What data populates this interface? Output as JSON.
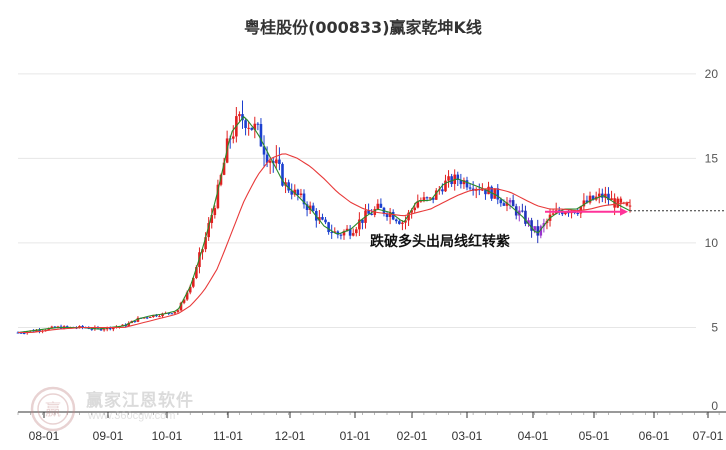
{
  "chart_data": {
    "type": "candlestick",
    "title": "粤桂股份(000833)赢家乾坤K线",
    "xlabel": "",
    "ylabel": "",
    "ylim": [
      0,
      22
    ],
    "x_tick_labels": [
      "08-01",
      "09-01",
      "10-01",
      "11-01",
      "12-01",
      "01-01",
      "02-01",
      "03-01",
      "04-01",
      "05-01",
      "06-01",
      "07-01"
    ],
    "y_tick_labels": [
      "0",
      "5",
      "10",
      "15",
      "20"
    ],
    "y_ticks": [
      0,
      5,
      10,
      15,
      20
    ],
    "grid": true,
    "annotation": "跌破多头出局线红转紫",
    "last_close": 11.9,
    "series": [
      {
        "values": [
          4.7,
          4.8,
          4.9,
          5.0,
          5.0,
          5.0,
          4.9,
          5.0,
          5.1,
          5.5,
          5.7,
          5.8,
          6.0,
          7.5,
          10.0,
          13.0,
          16.5,
          17.5,
          16.5,
          15.0,
          13.5,
          12.8,
          12.0,
          11.0,
          10.5,
          10.8,
          11.5,
          12.0,
          11.8,
          11.2,
          12.5,
          12.5,
          13.5,
          13.8,
          13.5,
          13.2,
          12.8,
          12.2,
          11.5,
          10.5,
          11.5,
          12.0,
          12.0,
          12.5,
          12.8,
          12.3,
          11.9
        ]
      },
      {
        "values": [
          4.7,
          4.7,
          4.8,
          4.9,
          4.95,
          5.0,
          5.0,
          5.0,
          5.0,
          5.2,
          5.4,
          5.6,
          5.8,
          6.3,
          7.2,
          8.5,
          10.5,
          12.5,
          14.0,
          15.0,
          15.3,
          15.0,
          14.5,
          13.8,
          13.0,
          12.4,
          12.0,
          11.8,
          11.7,
          11.6,
          11.8,
          12.0,
          12.4,
          12.8,
          13.1,
          13.2,
          13.2,
          13.0,
          12.6,
          12.2,
          12.0,
          12.0,
          11.9,
          12.0,
          12.2,
          12.3,
          12.4
        ]
      }
    ]
  },
  "watermark": {
    "brand": "赢家江恩软件",
    "url": "www.360cgw.com",
    "seal": "赢"
  }
}
